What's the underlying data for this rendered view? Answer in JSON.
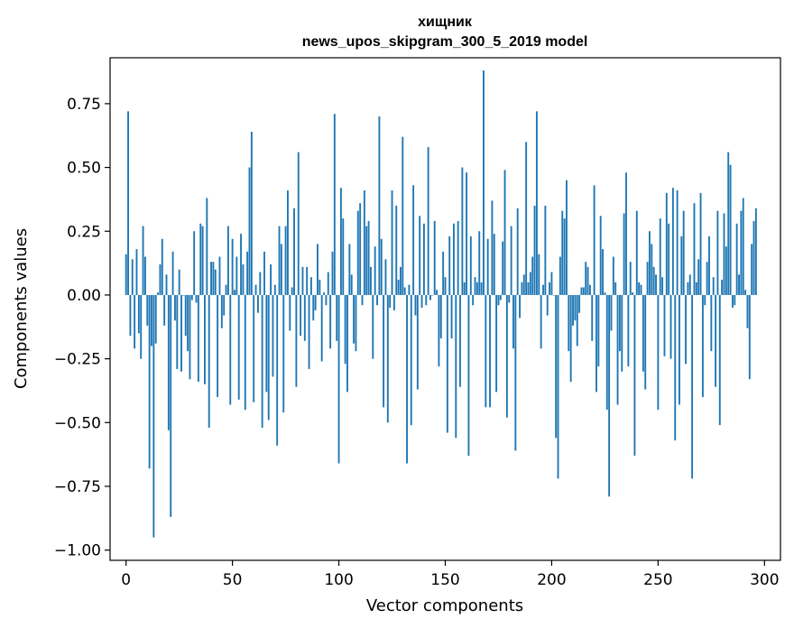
{
  "chart_data": {
    "type": "bar",
    "title_lines": [
      "хищник",
      "news_upos_skipgram_300_5_2019 model"
    ],
    "xlabel": "Vector components",
    "ylabel": "Components values",
    "xlim": [
      -7.5,
      307.5
    ],
    "ylim": [
      -1.04,
      0.93
    ],
    "xticks": [
      0,
      50,
      100,
      150,
      200,
      250,
      300
    ],
    "xtick_labels": [
      "0",
      "50",
      "100",
      "150",
      "200",
      "250",
      "300"
    ],
    "yticks": [
      -1.0,
      -0.75,
      -0.5,
      -0.25,
      0.0,
      0.25,
      0.5,
      0.75
    ],
    "ytick_labels": [
      "−1.00",
      "−0.75",
      "−0.50",
      "−0.25",
      "0.00",
      "0.25",
      "0.50",
      "0.75"
    ],
    "grid": false,
    "bar_color": "#1f77b4",
    "values": [
      0.16,
      0.72,
      -0.16,
      0.14,
      -0.21,
      0.18,
      -0.15,
      -0.25,
      0.27,
      0.15,
      -0.12,
      -0.68,
      -0.2,
      -0.95,
      -0.19,
      0.01,
      0.12,
      0.22,
      -0.12,
      0.08,
      -0.53,
      -0.87,
      0.17,
      -0.1,
      -0.29,
      0.1,
      -0.3,
      0.0,
      -0.16,
      -0.22,
      -0.33,
      -0.02,
      0.25,
      -0.03,
      -0.34,
      0.28,
      0.27,
      -0.35,
      0.38,
      -0.52,
      0.13,
      0.13,
      0.1,
      -0.4,
      0.15,
      -0.13,
      -0.08,
      0.04,
      0.27,
      -0.43,
      0.22,
      0.02,
      0.15,
      -0.41,
      0.24,
      0.12,
      -0.45,
      0.17,
      0.5,
      0.64,
      -0.42,
      0.04,
      -0.07,
      0.09,
      -0.52,
      0.17,
      -0.38,
      -0.49,
      0.12,
      -0.32,
      0.04,
      -0.59,
      0.27,
      0.2,
      -0.46,
      0.27,
      0.41,
      -0.14,
      0.03,
      0.34,
      -0.36,
      0.56,
      -0.16,
      0.11,
      -0.18,
      0.11,
      -0.29,
      0.07,
      -0.1,
      -0.06,
      0.2,
      0.06,
      -0.26,
      0.01,
      -0.04,
      0.09,
      -0.21,
      0.17,
      0.71,
      -0.18,
      -0.66,
      0.42,
      0.3,
      -0.27,
      -0.38,
      0.2,
      0.08,
      -0.19,
      -0.22,
      0.33,
      0.36,
      -0.04,
      0.41,
      0.27,
      0.29,
      0.11,
      -0.25,
      0.19,
      -0.04,
      0.7,
      0.22,
      -0.44,
      0.14,
      -0.5,
      -0.05,
      0.41,
      -0.06,
      0.35,
      0.06,
      0.11,
      0.62,
      0.03,
      -0.66,
      0.04,
      -0.51,
      0.43,
      -0.08,
      -0.37,
      0.31,
      -0.05,
      0.28,
      -0.04,
      0.58,
      -0.02,
      0.0,
      0.29,
      0.02,
      -0.28,
      -0.17,
      0.17,
      0.07,
      -0.54,
      0.23,
      -0.17,
      0.28,
      -0.56,
      0.29,
      -0.36,
      0.5,
      0.05,
      0.48,
      -0.63,
      0.23,
      -0.04,
      0.07,
      0.05,
      0.25,
      0.05,
      0.88,
      -0.44,
      0.22,
      -0.44,
      0.37,
      0.24,
      -0.38,
      -0.04,
      -0.02,
      0.21,
      0.49,
      -0.48,
      -0.03,
      0.27,
      -0.21,
      -0.61,
      0.34,
      -0.09,
      0.05,
      0.08,
      0.6,
      0.05,
      0.09,
      0.15,
      0.35,
      0.72,
      0.16,
      -0.21,
      0.04,
      0.35,
      -0.08,
      0.05,
      0.09,
      0.0,
      -0.56,
      -0.72,
      0.15,
      0.33,
      0.3,
      0.45,
      -0.22,
      -0.34,
      -0.12,
      -0.1,
      -0.2,
      -0.07,
      0.03,
      0.03,
      0.13,
      0.11,
      0.04,
      -0.18,
      0.43,
      -0.38,
      -0.28,
      0.31,
      0.18,
      0.01,
      -0.45,
      -0.79,
      -0.14,
      0.15,
      0.05,
      -0.43,
      -0.22,
      -0.3,
      0.32,
      0.48,
      -0.28,
      0.13,
      0.01,
      -0.63,
      0.33,
      0.05,
      0.04,
      -0.3,
      -0.37,
      0.13,
      0.25,
      0.2,
      0.11,
      0.08,
      -0.45,
      0.3,
      0.07,
      -0.24,
      0.4,
      0.28,
      -0.25,
      0.42,
      -0.57,
      0.41,
      -0.43,
      0.23,
      0.33,
      -0.27,
      0.05,
      0.08,
      -0.72,
      0.36,
      0.05,
      0.14,
      0.4,
      -0.4,
      -0.04,
      0.13,
      0.23,
      -0.22,
      0.07,
      -0.36,
      0.33,
      -0.51,
      0.06,
      0.32,
      0.19,
      0.56,
      0.51,
      -0.05,
      -0.04,
      0.28,
      0.08,
      0.33,
      0.38,
      0.02,
      -0.13,
      -0.33,
      0.2,
      0.29,
      0.34
    ]
  }
}
